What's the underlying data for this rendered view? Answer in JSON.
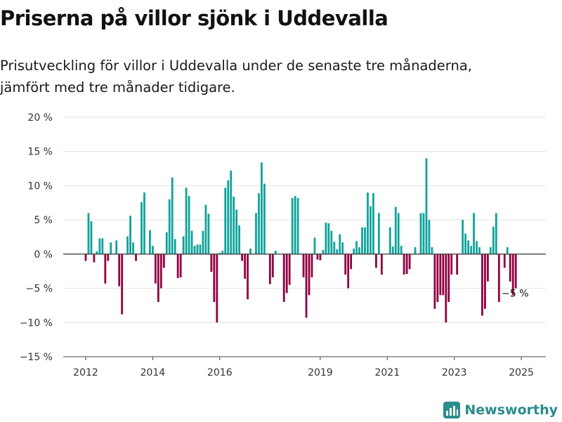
{
  "title": "Priserna på villor sjönk i Uddevalla",
  "subtitle_line1": "Prisutveckling för villor i Uddevalla under de senaste tre månaderna,",
  "subtitle_line2": "jämfört med tre månader tidigare.",
  "logo": {
    "text": "Newsworthy",
    "icon": "bar-chart-logo-icon"
  },
  "colors": {
    "positive": "#0fa39b",
    "negative": "#92003f",
    "grid": "#e2e2e2",
    "zero_line": "#333333",
    "logo": "#2a8c8c"
  },
  "chart_data": {
    "type": "bar",
    "ylim": [
      -15,
      20
    ],
    "yticks": [
      -15,
      -10,
      -5,
      0,
      5,
      10,
      15,
      20
    ],
    "ytick_labels": [
      "−15 %",
      "−10 %",
      "−5 %",
      "0 %",
      "5 %",
      "10 %",
      "15 %",
      "20 %"
    ],
    "xtick_labels": [
      "2012",
      "2014",
      "2016",
      "2019",
      "2021",
      "2023",
      "2025"
    ],
    "xtick_dates": [
      2012,
      2014,
      2016,
      2019,
      2021,
      2023,
      2025
    ],
    "grid": true,
    "x_start": "2012-01",
    "frequency": "monthly",
    "annotation": "−5 %",
    "values": [
      -1,
      6,
      4.8,
      -1.2,
      0.4,
      2.3,
      2.3,
      -4.3,
      -1,
      1.7,
      0,
      2,
      -4.7,
      -8.8,
      0,
      2.6,
      5.6,
      1.7,
      -1,
      0,
      7.6,
      9,
      0,
      3.5,
      1.2,
      -4.3,
      -7,
      -5,
      -2,
      3.2,
      8,
      11.2,
      2.2,
      -3.5,
      -3.4,
      2.6,
      9.7,
      8.5,
      3.4,
      1.2,
      1.4,
      1.4,
      3.4,
      7.2,
      5.9,
      -2.6,
      -7,
      -10,
      0.2,
      0.5,
      9.7,
      10.8,
      12.2,
      8.4,
      6.5,
      4.2,
      -1,
      -3.6,
      -6.6,
      0.8,
      0,
      6,
      8.9,
      13.4,
      10.3,
      0,
      -4.4,
      -3.4,
      0.5,
      0,
      0,
      -7,
      -5.7,
      -4.5,
      8.2,
      8.5,
      8.2,
      0,
      -3.4,
      -9.3,
      -6,
      -3.4,
      2.4,
      -0.8,
      -0.9,
      0.6,
      4.6,
      4.5,
      3.4,
      1.8,
      0.7,
      2.9,
      1.7,
      -3,
      -5,
      -2.2,
      0.8,
      1.9,
      1,
      3.9,
      3.9,
      9,
      7,
      8.9,
      -2,
      6,
      -3,
      0,
      0,
      3.9,
      1.1,
      6.9,
      6,
      1.2,
      -3,
      -2.9,
      -2.2,
      0,
      1,
      0,
      6,
      6,
      14,
      5,
      1,
      -8,
      -7,
      -6,
      -6,
      -10,
      -7,
      -3,
      0,
      -3,
      0,
      5,
      3,
      2,
      1.2,
      6,
      1.9,
      1,
      -9,
      -8,
      -4,
      1,
      4,
      6,
      -7,
      0,
      -2,
      1,
      -4,
      -6,
      -5
    ]
  }
}
